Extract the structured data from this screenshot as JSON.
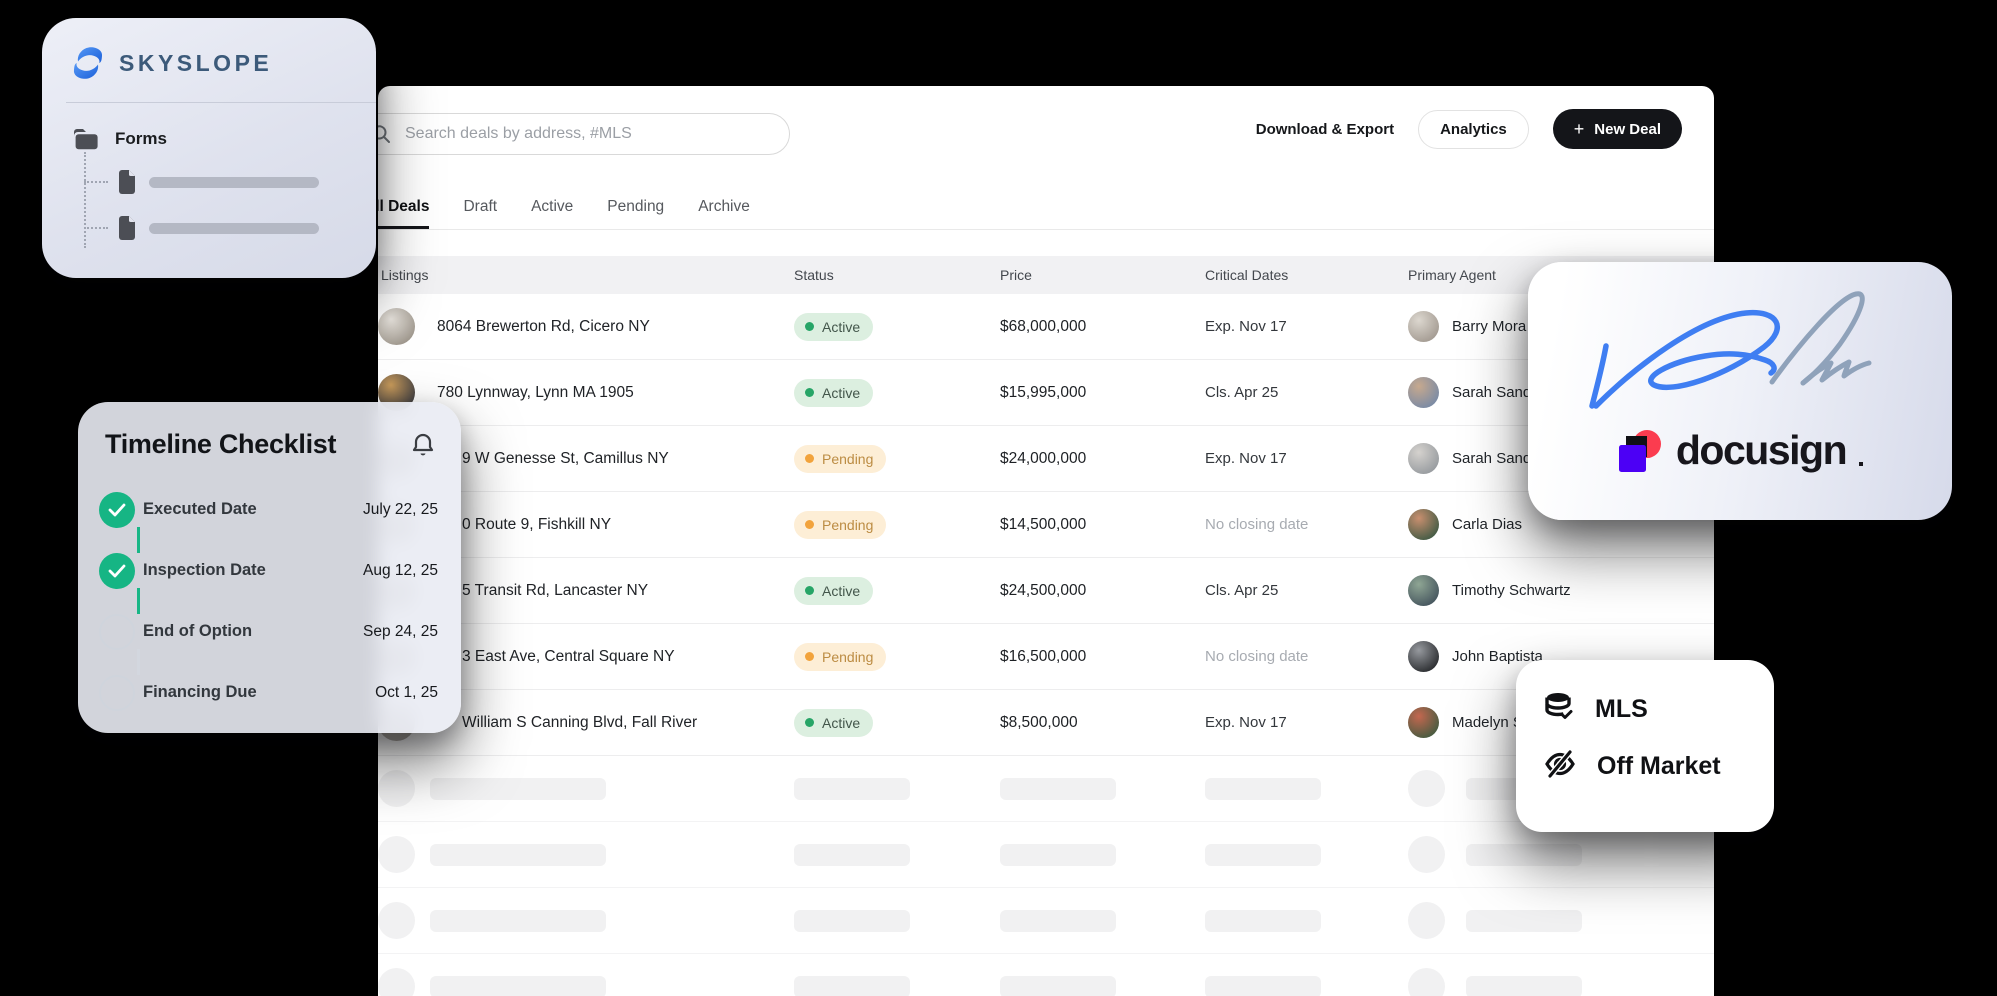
{
  "brand_card": {
    "name": "SKYSLOPE",
    "section_label": "Forms",
    "placeholder_bars": 2
  },
  "topbar": {
    "search_placeholder": "Search deals by address, #MLS",
    "export_label": "Download & Export",
    "analytics_label": "Analytics",
    "new_deal_label": "New Deal",
    "new_deal_plus": "+"
  },
  "tabs": [
    {
      "label": "All Deals",
      "active": true
    },
    {
      "label": "Draft",
      "active": false
    },
    {
      "label": "Active",
      "active": false
    },
    {
      "label": "Pending",
      "active": false
    },
    {
      "label": "Archive",
      "active": false
    }
  ],
  "table": {
    "headers": [
      "Listings",
      "Status",
      "Price",
      "Critical Dates",
      "Primary Agent"
    ],
    "rows": [
      {
        "address": "8064 Brewerton Rd, Cicero NY",
        "status": "Active",
        "price": "$68,000,000",
        "critical": "Exp. Nov 17",
        "critical_muted": false,
        "agent": "Barry Mora",
        "indent": false,
        "thumb": [
          "#e8e4de",
          "#948c81"
        ],
        "avatar": [
          "#dcd7cf",
          "#9c938a"
        ]
      },
      {
        "address": "780 Lynnway, Lynn MA 1905",
        "status": "Active",
        "price": "$15,995,000",
        "critical": "Cls. Apr 25",
        "critical_muted": false,
        "agent": "Sarah Sand",
        "indent": false,
        "thumb": [
          "#c89a5a",
          "#2f3440"
        ],
        "avatar": [
          "#c7a98e",
          "#6f86a8"
        ]
      },
      {
        "address": "9 W Genesse St, Camillus NY",
        "status": "Pending",
        "price": "$24,000,000",
        "critical": "Exp. Nov 17",
        "critical_muted": false,
        "agent": "Sarah Sand",
        "indent": true,
        "thumb": [
          "#d8d4cf",
          "#a9a49d"
        ],
        "avatar": [
          "#d5d2ce",
          "#8f9499"
        ]
      },
      {
        "address": "0 Route 9, Fishkill NY",
        "status": "Pending",
        "price": "$14,500,000",
        "critical": "No closing date",
        "critical_muted": true,
        "agent": "Carla Dias",
        "indent": true,
        "thumb": [
          "#d8d4cf",
          "#a9a49d"
        ],
        "avatar": [
          "#c98f6f",
          "#31543f"
        ]
      },
      {
        "address": "5 Transit Rd, Lancaster NY",
        "status": "Active",
        "price": "$24,500,000",
        "critical": "Cls. Apr 25",
        "critical_muted": false,
        "agent": "Timothy Schwartz",
        "indent": true,
        "thumb": [
          "#d8d4cf",
          "#a9a49d"
        ],
        "avatar": [
          "#8fa694",
          "#3c4b57"
        ]
      },
      {
        "address": "3 East Ave, Central Square NY",
        "status": "Pending",
        "price": "$16,500,000",
        "critical": "No closing date",
        "critical_muted": true,
        "agent": "John Baptista",
        "indent": true,
        "thumb": [
          "#d8d4cf",
          "#a9a49d"
        ],
        "avatar": [
          "#96999e",
          "#1d1f22"
        ]
      },
      {
        "address": "William S Canning Blvd, Fall River",
        "status": "Active",
        "price": "$8,500,000",
        "critical": "Exp. Nov 17",
        "critical_muted": false,
        "agent": "Madelyn S",
        "indent": true,
        "thumb": [
          "#d8d4cf",
          "#a9a49d"
        ],
        "avatar": [
          "#c4674f",
          "#355a3f"
        ]
      }
    ],
    "skeleton_rows": 4
  },
  "timeline_card": {
    "title": "Timeline Checklist",
    "items": [
      {
        "label": "Executed Date",
        "date": "July 22, 25",
        "done": true
      },
      {
        "label": "Inspection Date",
        "date": "Aug 12, 25",
        "done": true
      },
      {
        "label": "End of Option",
        "date": "Sep 24, 25",
        "done": false
      },
      {
        "label": "Financing Due",
        "date": "Oct 1, 25",
        "done": false
      }
    ]
  },
  "docusign_card": {
    "wordmark": "docusign"
  },
  "mls_card": {
    "items": [
      {
        "label": "MLS",
        "icon": "database-check-icon"
      },
      {
        "label": "Off Market",
        "icon": "eye-off-icon"
      }
    ]
  },
  "colors": {
    "active_green": "#27a567",
    "pending_orange": "#f2a33c",
    "check_green": "#16b584",
    "brand_blue": "#2e7cf0",
    "brand_text": "#3c5a7a",
    "docusign_purple": "#4c00f5",
    "docusign_red": "#fb3c4f",
    "signature_blue": "#3f7ef2",
    "signature_slate": "#8fa2ba"
  }
}
